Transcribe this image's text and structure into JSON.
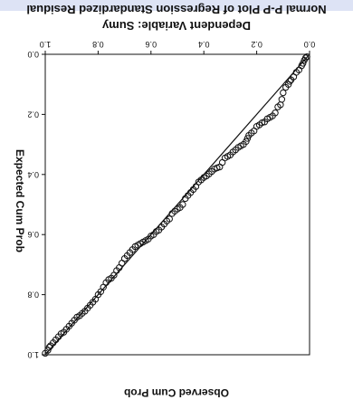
{
  "chart_data": {
    "type": "scatter",
    "title": "Normal P-P Plot of Regression Standardized Residual",
    "subtitle": "Dependent Variable: Sumy",
    "xlabel": "Observed Cum Prob",
    "ylabel": "Expected Cum Prob",
    "xlim": [
      0,
      1
    ],
    "ylim": [
      0,
      1
    ],
    "x_ticks": [
      "0.0",
      "0.2",
      "0.4",
      "0.6",
      "0.8",
      "1.0"
    ],
    "y_ticks": [
      "0.0",
      "0.2",
      "0.4",
      "0.6",
      "0.8",
      "1.0"
    ],
    "reference_line": [
      [
        0,
        0
      ],
      [
        1,
        1
      ]
    ],
    "orientation": "rotated-180",
    "grid": false,
    "colors": {
      "accent_band": "#dde3f5",
      "points": "#111111",
      "line": "#111111"
    },
    "series": [
      {
        "x": [
          0.01,
          0.015,
          0.02,
          0.025,
          0.03,
          0.04,
          0.05,
          0.06,
          0.07,
          0.075,
          0.08,
          0.09,
          0.1,
          0.105,
          0.11,
          0.12,
          0.13,
          0.14,
          0.15,
          0.16,
          0.17,
          0.18,
          0.19,
          0.2,
          0.21,
          0.22,
          0.23,
          0.235,
          0.24,
          0.25,
          0.26,
          0.27,
          0.28,
          0.29,
          0.3,
          0.31,
          0.32,
          0.33,
          0.34,
          0.35,
          0.36,
          0.37,
          0.38,
          0.39,
          0.4,
          0.41,
          0.42,
          0.43,
          0.44,
          0.45,
          0.46,
          0.47,
          0.48,
          0.49,
          0.5,
          0.51,
          0.52,
          0.53,
          0.54,
          0.55,
          0.56,
          0.57,
          0.58,
          0.59,
          0.6,
          0.61,
          0.62,
          0.63,
          0.64,
          0.65,
          0.66,
          0.67,
          0.68,
          0.69,
          0.7,
          0.71,
          0.72,
          0.73,
          0.74,
          0.75,
          0.76,
          0.77,
          0.78,
          0.79,
          0.8,
          0.81,
          0.82,
          0.83,
          0.84,
          0.85,
          0.86,
          0.87,
          0.88,
          0.89,
          0.9,
          0.91,
          0.92,
          0.93,
          0.94,
          0.95,
          0.96,
          0.97,
          0.98,
          0.985,
          0.99,
          1.0
        ],
        "y": [
          0.008,
          0.012,
          0.02,
          0.03,
          0.038,
          0.052,
          0.06,
          0.075,
          0.085,
          0.09,
          0.1,
          0.11,
          0.128,
          0.15,
          0.168,
          0.175,
          0.195,
          0.205,
          0.21,
          0.215,
          0.225,
          0.228,
          0.235,
          0.24,
          0.255,
          0.262,
          0.27,
          0.28,
          0.29,
          0.3,
          0.305,
          0.31,
          0.318,
          0.325,
          0.335,
          0.34,
          0.345,
          0.36,
          0.375,
          0.378,
          0.382,
          0.39,
          0.398,
          0.405,
          0.41,
          0.418,
          0.425,
          0.44,
          0.45,
          0.46,
          0.47,
          0.48,
          0.5,
          0.51,
          0.515,
          0.522,
          0.53,
          0.548,
          0.555,
          0.565,
          0.575,
          0.585,
          0.59,
          0.6,
          0.605,
          0.615,
          0.62,
          0.625,
          0.63,
          0.635,
          0.64,
          0.65,
          0.66,
          0.67,
          0.68,
          0.695,
          0.71,
          0.72,
          0.735,
          0.745,
          0.75,
          0.76,
          0.775,
          0.79,
          0.8,
          0.815,
          0.825,
          0.835,
          0.845,
          0.855,
          0.862,
          0.87,
          0.875,
          0.885,
          0.895,
          0.905,
          0.915,
          0.925,
          0.93,
          0.94,
          0.95,
          0.96,
          0.97,
          0.975,
          0.985,
          0.995
        ]
      }
    ]
  }
}
